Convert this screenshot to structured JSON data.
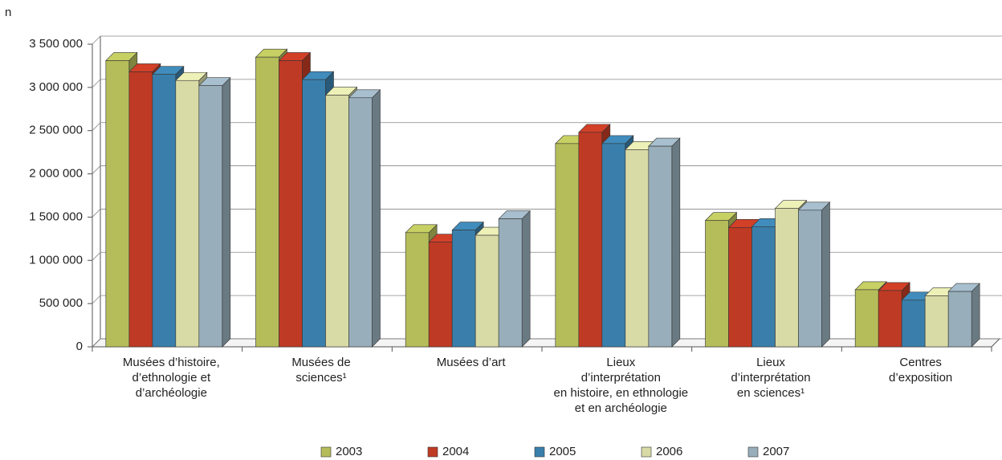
{
  "chart_data": {
    "type": "bar3d",
    "y_label": "n",
    "categories": [
      [
        "Musées d’histoire,",
        "d’ethnologie et",
        "d’archéologie"
      ],
      [
        "Musées de",
        "sciences¹"
      ],
      [
        "Musées d’art"
      ],
      [
        "Lieux",
        "d’interprétation",
        "en histoire, en ethnologie",
        "et en archéologie"
      ],
      [
        "Lieux",
        "d’interprétation",
        "en sciences¹"
      ],
      [
        "Centres",
        "d’exposition"
      ]
    ],
    "series": [
      {
        "name": "2003",
        "color": "#b5bd5a",
        "values": [
          3310000,
          3350000,
          1320000,
          2350000,
          1460000,
          660000
        ]
      },
      {
        "name": "2004",
        "color": "#bf3a24",
        "values": [
          3180000,
          3310000,
          1210000,
          2480000,
          1380000,
          650000
        ]
      },
      {
        "name": "2005",
        "color": "#3a7fab",
        "values": [
          3150000,
          3090000,
          1350000,
          2350000,
          1390000,
          540000
        ]
      },
      {
        "name": "2006",
        "color": "#d8dba6",
        "values": [
          3080000,
          2910000,
          1290000,
          2280000,
          1600000,
          590000
        ]
      },
      {
        "name": "2007",
        "color": "#98aebb",
        "values": [
          3020000,
          2880000,
          1480000,
          2320000,
          1580000,
          640000
        ]
      }
    ],
    "ylim": [
      0,
      3500000
    ],
    "yticks": [
      0,
      {
        "value": 500000,
        "label": "500 000"
      },
      {
        "value": 1000000,
        "label": "1 000 000"
      },
      {
        "value": 1500000,
        "label": "1 500 000"
      },
      {
        "value": 2000000,
        "label": "2 000 000"
      },
      {
        "value": 2500000,
        "label": "2 500 000"
      },
      {
        "value": 3000000,
        "label": "3 000 000"
      },
      {
        "value": 3500000,
        "label": "3 500 000"
      }
    ],
    "grid": true,
    "legend": "bottom"
  }
}
